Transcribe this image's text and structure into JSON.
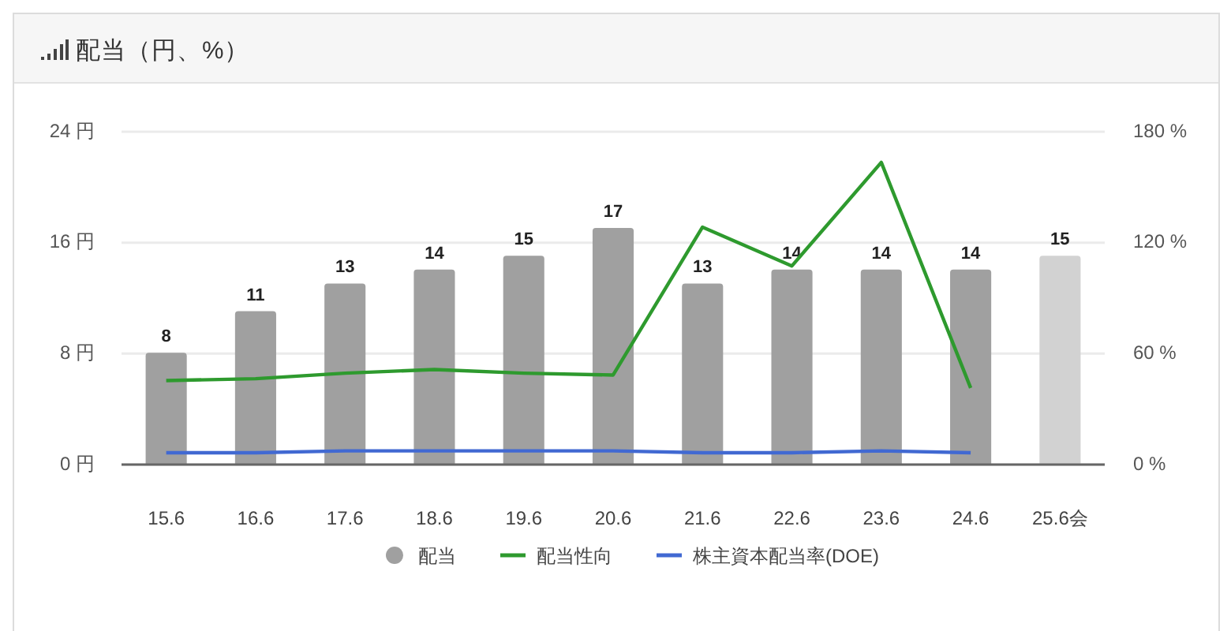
{
  "chart_data": {
    "type": "bar",
    "title": "配当（円、%）",
    "categories": [
      "15.6",
      "16.6",
      "17.6",
      "18.6",
      "19.6",
      "20.6",
      "21.6",
      "22.6",
      "23.6",
      "24.6",
      "25.6会"
    ],
    "series": [
      {
        "name": "配当",
        "color": "#a0a0a0",
        "colors": [
          "#a0a0a0",
          "#a0a0a0",
          "#a0a0a0",
          "#a0a0a0",
          "#a0a0a0",
          "#a0a0a0",
          "#a0a0a0",
          "#a0a0a0",
          "#a0a0a0",
          "#a0a0a0",
          "#d2d2d2"
        ],
        "values": [
          8,
          11,
          13,
          14,
          15,
          17,
          13,
          14,
          14,
          14,
          15
        ],
        "data_labels": true
      },
      {
        "name": "配当性向",
        "type": "line",
        "axis": "y2",
        "color": "#2e9a2e",
        "values": [
          45,
          46,
          49,
          51,
          49,
          48,
          128,
          107,
          163,
          41,
          null
        ]
      },
      {
        "name": "株主資本配当率(DOE)",
        "type": "line",
        "axis": "y2",
        "color": "#4169d2",
        "values": [
          6,
          6,
          7,
          7,
          7,
          7,
          6,
          6,
          7,
          6,
          null
        ]
      }
    ],
    "ylim": [
      0,
      24
    ],
    "yticks": [
      {
        "value": 0,
        "label": "0 円"
      },
      {
        "value": 8,
        "label": "8 円"
      },
      {
        "value": 16,
        "label": "16 円"
      },
      {
        "value": 24,
        "label": "24 円"
      }
    ],
    "y2lim": [
      0,
      180
    ],
    "y2ticks": [
      {
        "value": 0,
        "label": "0 %"
      },
      {
        "value": 60,
        "label": "60 %"
      },
      {
        "value": 120,
        "label": "120 %"
      },
      {
        "value": 180,
        "label": "180 %"
      }
    ],
    "grid": "y",
    "legend": "bottom"
  }
}
